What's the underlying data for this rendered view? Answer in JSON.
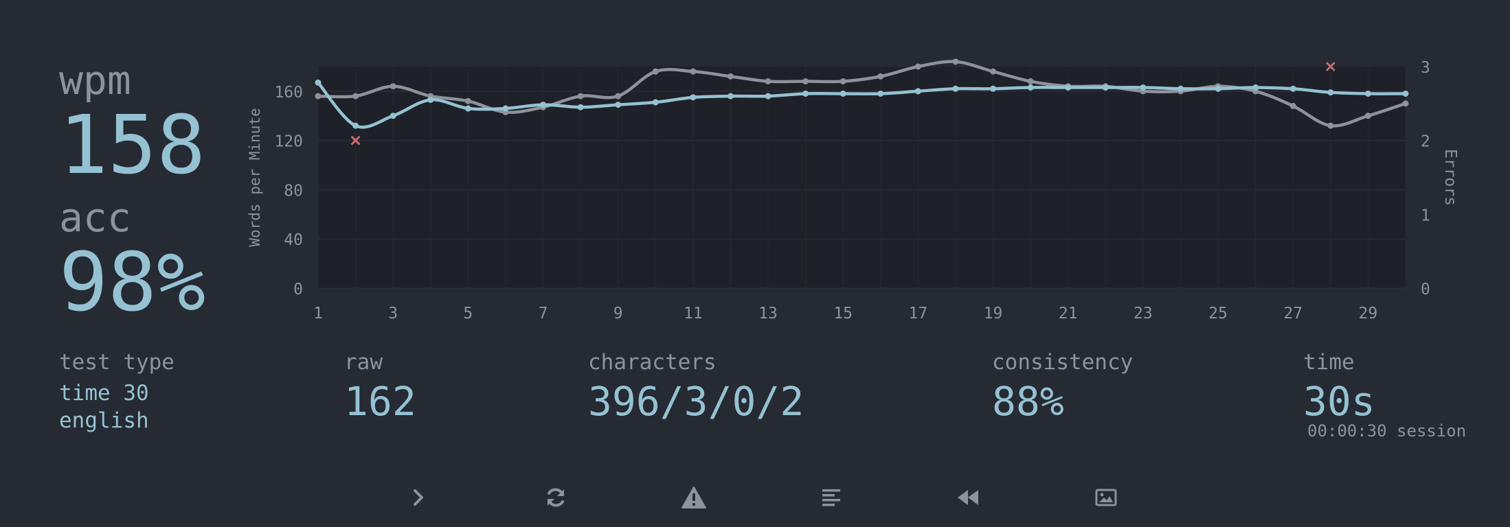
{
  "stats": {
    "wpm_label": "wpm",
    "wpm_value": "158",
    "acc_label": "acc",
    "acc_value": "98%",
    "test_type_label": "test type",
    "test_type_line1": "time 30",
    "test_type_line2": "english",
    "raw_label": "raw",
    "raw_value": "162",
    "characters_label": "characters",
    "characters_value": "396/3/0/2",
    "consistency_label": "consistency",
    "consistency_value": "88%",
    "time_label": "time",
    "time_value": "30s",
    "session_text": "00:00:30 session"
  },
  "colors": {
    "background": "#262a33",
    "plot_background": "#1f2128",
    "accent": "#95c2d2",
    "muted": "#8e939b",
    "error": "#c96b6e"
  },
  "chart_data": {
    "type": "line",
    "x": [
      1,
      2,
      3,
      4,
      5,
      6,
      7,
      8,
      9,
      10,
      11,
      12,
      13,
      14,
      15,
      16,
      17,
      18,
      19,
      20,
      21,
      22,
      23,
      24,
      25,
      26,
      27,
      28,
      29,
      30
    ],
    "x_ticks": [
      1,
      3,
      5,
      7,
      9,
      11,
      13,
      15,
      17,
      19,
      21,
      23,
      25,
      27,
      29
    ],
    "xlim": [
      1,
      30
    ],
    "ylabel": "Words per Minute",
    "ylim": [
      0,
      180
    ],
    "y_ticks": [
      0,
      40,
      80,
      120,
      160
    ],
    "y2label": "Errors",
    "y2lim": [
      0,
      3
    ],
    "y2_ticks": [
      0,
      1,
      2,
      3
    ],
    "grid": true,
    "series": [
      {
        "role": "wpm",
        "color": "#95c2d2",
        "values": [
          167,
          132,
          140,
          153,
          146,
          146,
          149,
          147,
          149,
          151,
          155,
          156,
          156,
          158,
          158,
          158,
          160,
          162,
          162,
          163,
          163,
          163,
          163,
          162,
          162,
          163,
          162,
          159,
          158,
          158
        ]
      },
      {
        "role": "raw",
        "color": "#8e939b",
        "values": [
          156,
          156,
          164,
          156,
          152,
          143,
          147,
          156,
          156,
          176,
          176,
          172,
          168,
          168,
          168,
          172,
          180,
          184,
          176,
          168,
          164,
          164,
          160,
          160,
          164,
          160,
          148,
          132,
          140,
          150
        ]
      }
    ],
    "errors": [
      {
        "x": 2,
        "y": 2
      },
      {
        "x": 28,
        "y": 3
      }
    ]
  },
  "buttons": [
    {
      "name": "next-test-button",
      "icon": "chevron-right-icon"
    },
    {
      "name": "restart-test-button",
      "icon": "refresh-icon"
    },
    {
      "name": "toggle-words-history-button",
      "icon": "warning-icon"
    },
    {
      "name": "word-history-button",
      "icon": "text-align-left-icon"
    },
    {
      "name": "watch-replay-button",
      "icon": "rewind-icon"
    },
    {
      "name": "save-screenshot-button",
      "icon": "image-icon"
    }
  ]
}
